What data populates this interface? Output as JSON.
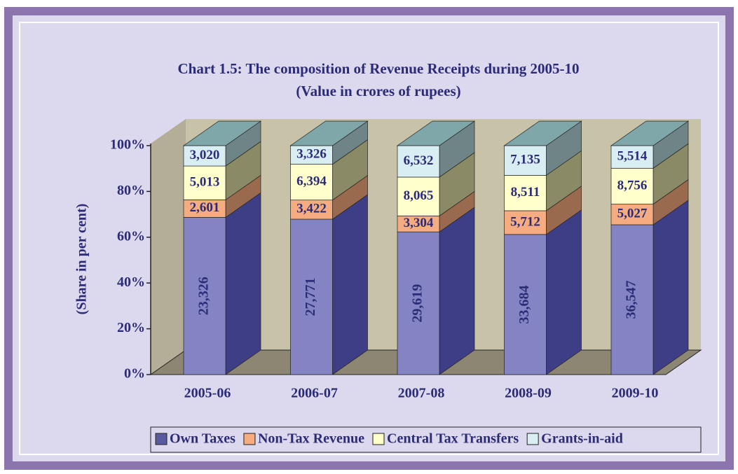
{
  "chart_data": {
    "type": "stacked_bar_3d_percent",
    "title": "Chart 1.5: The composition of Revenue Receipts during 2005-10",
    "subtitle": "(Value in crores of rupees)",
    "y_label": "(Share in per cent)",
    "categories": [
      "2005-06",
      "2006-07",
      "2007-08",
      "2008-09",
      "2009-10"
    ],
    "series": [
      {
        "name": "Own Taxes",
        "color": "#8484c4",
        "side_color": "#3e3e86",
        "legend_color": "#5a5a9e",
        "values": [
          23326,
          27771,
          29619,
          33684,
          36547
        ],
        "value_labels": [
          "23,326",
          "27,771",
          "29,619",
          "33,684",
          "36,547"
        ]
      },
      {
        "name": "Non-Tax Revenue",
        "color": "#f4ac80",
        "side_color": "#9a6a4e",
        "legend_color": "#f4ac80",
        "values": [
          2601,
          3422,
          3304,
          5712,
          5027
        ],
        "value_labels": [
          "2,601",
          "3,422",
          "3,304",
          "5,712",
          "5,027"
        ]
      },
      {
        "name": "Central Tax Transfers",
        "color": "#ffffcc",
        "side_color": "#8a8a66",
        "legend_color": "#ffffcc",
        "values": [
          5013,
          6394,
          8065,
          8511,
          8756
        ],
        "value_labels": [
          "5,013",
          "6,394",
          "8,065",
          "8,511",
          "8,756"
        ]
      },
      {
        "name": "Grants-in-aid",
        "color": "#d8eef2",
        "side_color": "#6f8486",
        "legend_color": "#d8eef2",
        "values": [
          3020,
          3326,
          6532,
          7135,
          5514
        ],
        "value_labels": [
          "3,020",
          "3,326",
          "6,532",
          "7,135",
          "5,514"
        ]
      }
    ],
    "ylim": [
      0,
      100
    ],
    "yticks": [
      {
        "value": 0,
        "label": "0%"
      },
      {
        "value": 20,
        "label": "20%"
      },
      {
        "value": 40,
        "label": "40%"
      },
      {
        "value": 60,
        "label": "60%"
      },
      {
        "value": 80,
        "label": "80%"
      },
      {
        "value": 100,
        "label": "100%"
      }
    ],
    "legend": "bottom",
    "grid": false
  }
}
